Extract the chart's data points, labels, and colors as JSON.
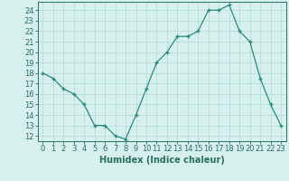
{
  "x": [
    0,
    1,
    2,
    3,
    4,
    5,
    6,
    7,
    8,
    9,
    10,
    11,
    12,
    13,
    14,
    15,
    16,
    17,
    18,
    19,
    20,
    21,
    22,
    23
  ],
  "y": [
    18,
    17.5,
    16.5,
    16,
    15,
    13,
    13,
    12,
    11.7,
    14,
    16.5,
    19,
    20,
    21.5,
    21.5,
    22,
    24,
    24,
    24.5,
    22,
    21,
    17.5,
    15,
    13
  ],
  "line_color": "#2a8a7e",
  "marker_color": "#2a8a7e",
  "bg_color": "#d6f0ee",
  "grid_color": "#b0d8d4",
  "xlabel": "Humidex (Indice chaleur)",
  "xlim": [
    -0.5,
    23.5
  ],
  "ylim": [
    11.5,
    24.8
  ],
  "xticks": [
    0,
    1,
    2,
    3,
    4,
    5,
    6,
    7,
    8,
    9,
    10,
    11,
    12,
    13,
    14,
    15,
    16,
    17,
    18,
    19,
    20,
    21,
    22,
    23
  ],
  "yticks": [
    12,
    13,
    14,
    15,
    16,
    17,
    18,
    19,
    20,
    21,
    22,
    23,
    24
  ],
  "tick_label_color": "#2a6e62",
  "axis_color": "#2a6e62",
  "font_size": 6.0,
  "xlabel_fontsize": 7.0
}
